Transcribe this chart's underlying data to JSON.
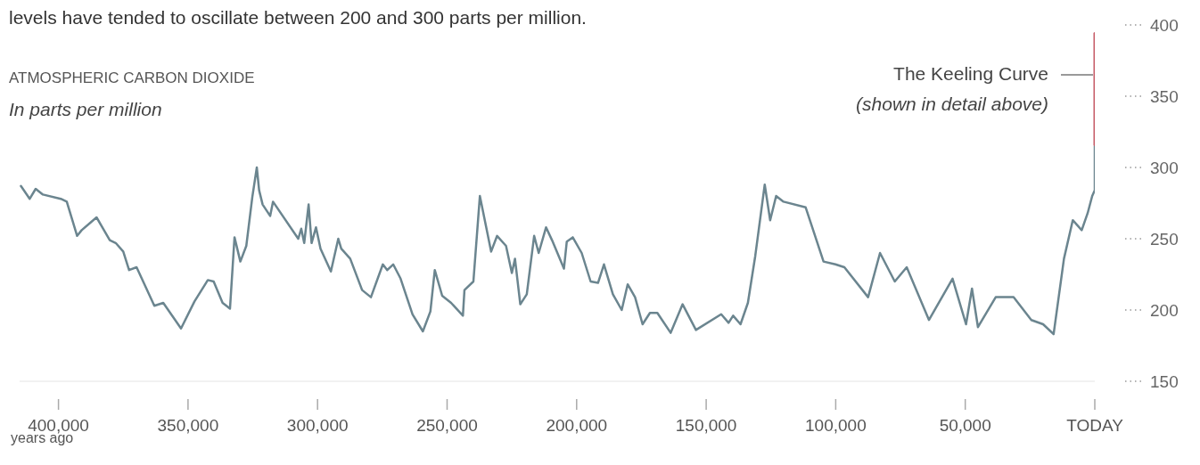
{
  "chart_data": {
    "type": "line",
    "title": "ATMOSPHERIC CARBON DIOXIDE",
    "subtitle": "In parts per million",
    "xlabel": "years ago",
    "annotations": [
      "levels have tended to oscillate between 200 and 300 parts per million.",
      {
        "text": "The Keeling Curve",
        "x": 0,
        "y": 365
      },
      "(shown in detail above)"
    ],
    "xlim": [
      415000,
      0
    ],
    "xticks": [
      {
        "value": 400000,
        "label": "400,000"
      },
      {
        "value": 350000,
        "label": "350,000"
      },
      {
        "value": 300000,
        "label": "300,000"
      },
      {
        "value": 250000,
        "label": "250,000"
      },
      {
        "value": 200000,
        "label": "200,000"
      },
      {
        "value": 150000,
        "label": "150,000"
      },
      {
        "value": 100000,
        "label": "100,000"
      },
      {
        "value": 50000,
        "label": "50,000"
      },
      {
        "value": 0,
        "label": "TODAY"
      }
    ],
    "ylim": [
      150,
      400
    ],
    "yticks": [
      150,
      200,
      250,
      300,
      350,
      400
    ],
    "series": [
      {
        "color": "#6b858f",
        "x": [
          414500,
          411100,
          408800,
          406000,
          399100,
          396800,
          392800,
          391050,
          385300,
          380200,
          377900,
          375000,
          372750,
          369850,
          363000,
          359550,
          352700,
          347500,
          342350,
          340100,
          336650,
          333800,
          332050,
          329800,
          327500,
          325200,
          323450,
          322550,
          321200,
          318300,
          317200,
          307450,
          306300,
          305150,
          303450,
          302300,
          300600,
          298850,
          294850,
          292000,
          290850,
          287400,
          282800,
          279400,
          274800,
          273100,
          270800,
          267950,
          263350,
          259350,
          256450,
          254750,
          251900,
          248450,
          243900,
          243300,
          239850,
          237350,
          233000,
          230700,
          227250,
          225000,
          223800,
          221750,
          219250,
          216400,
          214650,
          211800,
          209500,
          204900,
          203800,
          201500,
          198050,
          194600,
          191750,
          189450,
          186000,
          182600,
          180300,
          177450,
          174550,
          171700,
          168850,
          163700,
          159100,
          153950,
          144200,
          141350,
          139600,
          136750,
          133900,
          131050,
          127400,
          125300,
          123000,
          120150,
          111600,
          104700,
          100100,
          96650,
          87500,
          82900,
          77200,
          72600,
          64000,
          54900,
          49700,
          47400,
          45100,
          38250,
          31350,
          24500,
          19950,
          15900,
          11900,
          8500,
          5050,
          2750,
          1000,
          0,
          0
        ],
        "values": [
          287,
          278,
          285,
          281,
          278,
          276,
          252,
          256,
          265,
          249,
          247,
          241,
          228,
          230,
          203,
          205,
          187,
          206,
          221,
          220,
          205,
          201,
          251,
          234,
          245,
          279,
          300,
          284,
          274,
          266,
          276,
          250,
          257,
          247,
          274,
          247,
          258,
          243,
          227,
          250,
          243,
          236,
          214,
          209,
          232,
          228,
          232,
          222,
          197,
          185,
          199,
          228,
          210,
          205,
          196,
          214,
          220,
          280,
          241,
          252,
          245,
          226,
          236,
          204,
          211,
          252,
          240,
          258,
          249,
          229,
          248,
          251,
          240,
          220,
          219,
          232,
          211,
          200,
          218,
          209,
          190,
          198,
          198,
          184,
          204,
          186,
          197,
          191,
          196,
          190,
          205,
          238,
          288,
          263,
          280,
          276,
          272,
          234,
          232,
          230,
          209,
          240,
          220,
          230,
          193,
          222,
          190,
          215,
          188,
          209,
          209,
          193,
          190,
          183,
          236,
          263,
          256,
          268,
          280,
          284,
          315
        ]
      },
      {
        "color": "#c65b66",
        "x": [
          0,
          0
        ],
        "values": [
          316,
          394
        ]
      }
    ]
  }
}
